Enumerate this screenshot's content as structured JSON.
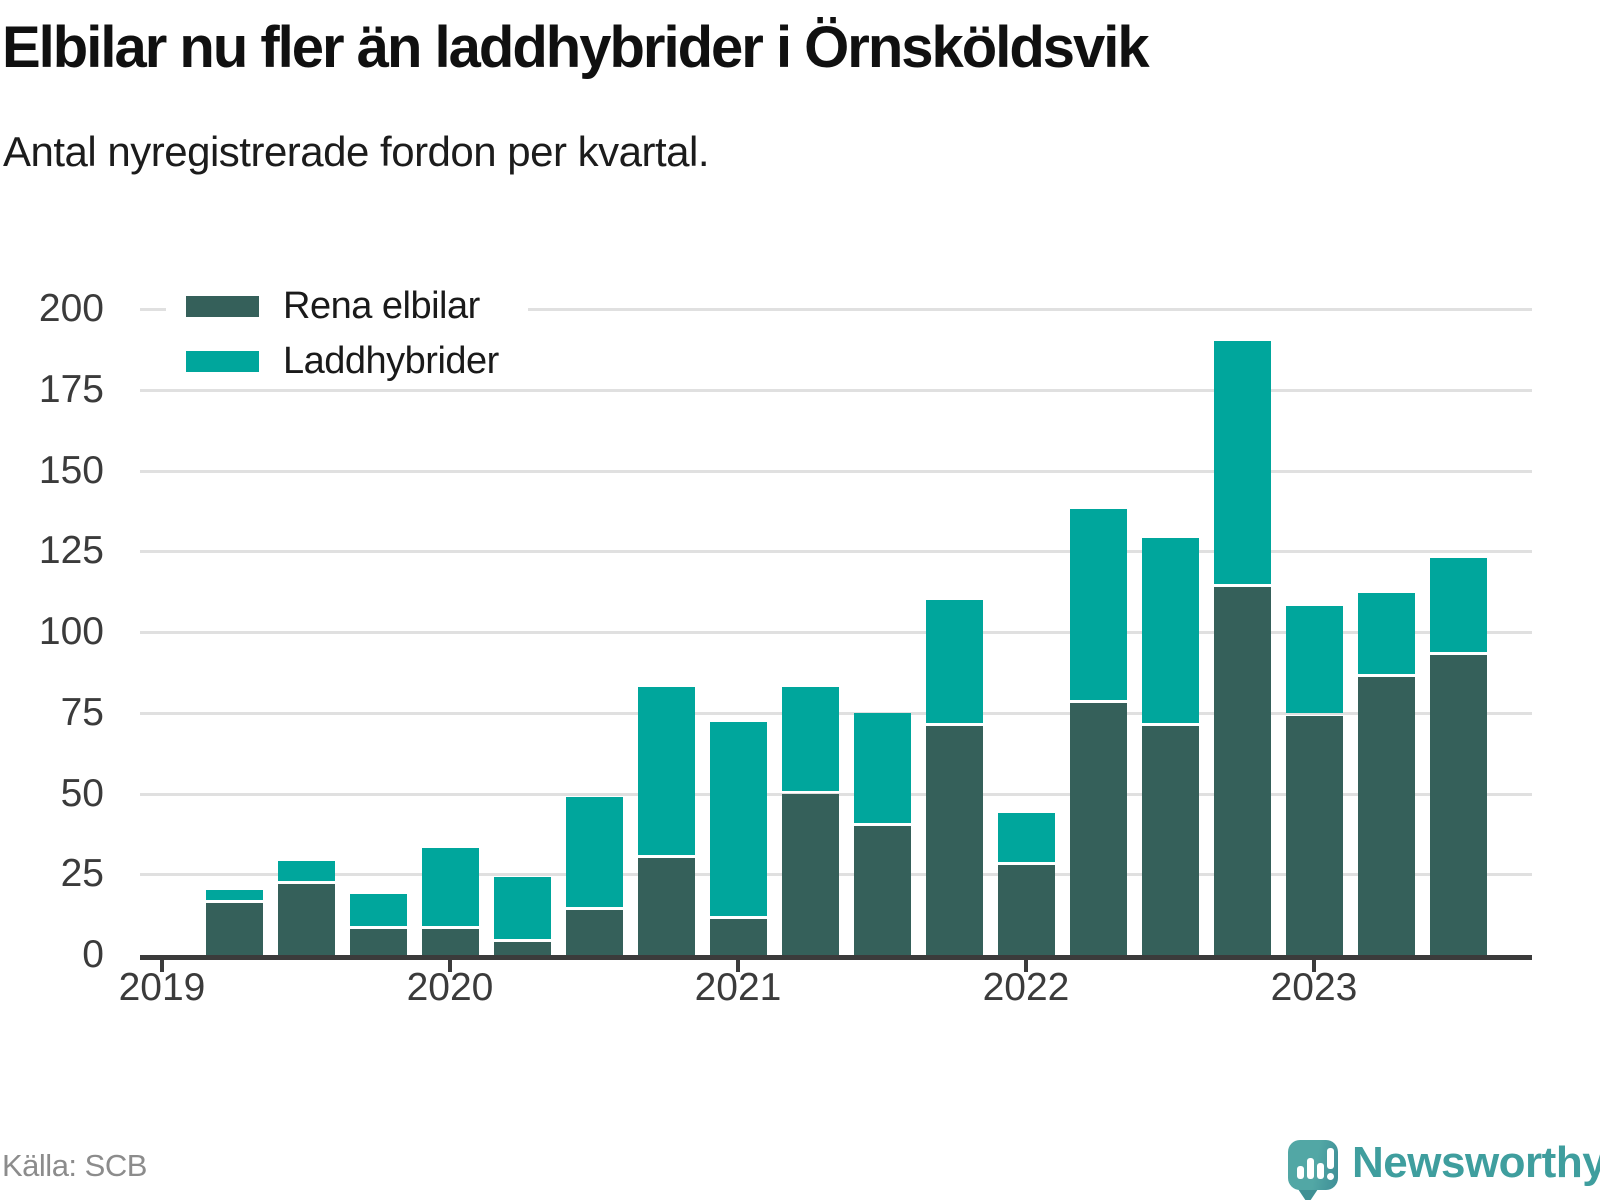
{
  "header": {
    "title": "Elbilar nu fler än laddhybrider i Örnsköldsvik",
    "subtitle": "Antal nyregistrerade fordon per kvartal."
  },
  "legend": [
    {
      "label": "Rena elbilar",
      "color": "#35605A"
    },
    {
      "label": "Laddhybrider",
      "color": "#00A69C"
    }
  ],
  "footer": {
    "source": "Källa: SCB",
    "brand": "Newsworthy"
  },
  "colors": {
    "axis": "#3B3B3B",
    "grid": "#E0E0E0",
    "title_text": "#101010",
    "tick_text": "#3B3B3B",
    "source_text": "#8C8C8C",
    "brand_teal": "#3F9E9E"
  },
  "chart_data": {
    "type": "bar",
    "stacked": true,
    "title": "Elbilar nu fler än laddhybrider i Örnsköldsvik",
    "subtitle": "Antal nyregistrerade fordon per kvartal.",
    "categories": [
      "2019-K2",
      "2019-K3",
      "2019-K4",
      "2020-K1",
      "2020-K2",
      "2020-K3",
      "2020-K4",
      "2021-K1",
      "2021-K2",
      "2021-K3",
      "2021-K4",
      "2022-K1",
      "2022-K2",
      "2022-K3",
      "2022-K4",
      "2023-K1",
      "2023-K2",
      "2023-K3"
    ],
    "series": [
      {
        "name": "Rena elbilar",
        "color": "#35605A",
        "values": [
          16,
          22,
          8,
          8,
          4,
          14,
          30,
          11,
          50,
          40,
          71,
          28,
          78,
          71,
          114,
          74,
          86,
          93
        ]
      },
      {
        "name": "Laddhybrider",
        "color": "#00A69C",
        "values": [
          4,
          7,
          11,
          25,
          20,
          35,
          53,
          61,
          33,
          35,
          39,
          16,
          60,
          58,
          76,
          34,
          26,
          30
        ]
      }
    ],
    "totals": [
      20,
      29,
      19,
      33,
      24,
      49,
      83,
      72,
      83,
      75,
      110,
      44,
      138,
      129,
      190,
      108,
      112,
      123
    ],
    "x_tick_labels": [
      "2019",
      "2020",
      "2021",
      "2022",
      "2023"
    ],
    "y_ticks": [
      0,
      25,
      50,
      75,
      100,
      125,
      150,
      175,
      200
    ],
    "ylim": [
      0,
      200
    ],
    "grid": true,
    "legend_position": "top-left",
    "source": "Källa: SCB"
  }
}
